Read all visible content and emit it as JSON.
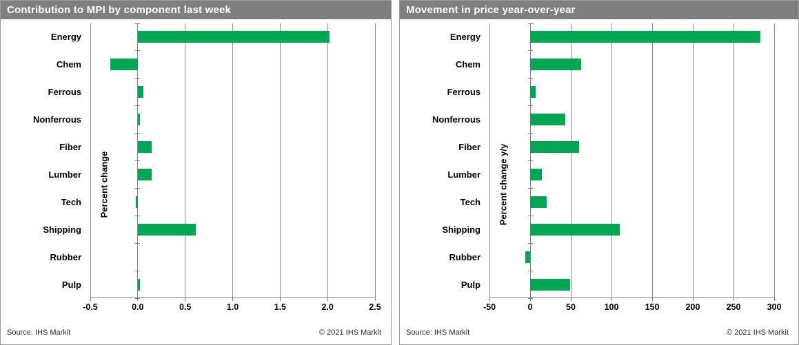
{
  "chart_data": [
    {
      "type": "bar",
      "orientation": "horizontal",
      "title": "Contribution to MPI by component last week",
      "ylabel": "Percent change",
      "xlabel": "",
      "categories": [
        "Energy",
        "Chem",
        "Ferrous",
        "Nonferrous",
        "Fiber",
        "Lumber",
        "Tech",
        "Shipping",
        "Rubber",
        "Pulp"
      ],
      "values": [
        2.02,
        -0.29,
        0.06,
        0.02,
        0.15,
        0.15,
        -0.02,
        0.61,
        0.0,
        0.02
      ],
      "xlim": [
        -0.5,
        2.5
      ],
      "xticks": [
        -0.5,
        0.0,
        0.5,
        1.0,
        1.5,
        2.0,
        2.5
      ],
      "xtick_labels": [
        "-0.5",
        "0.0",
        "0.5",
        "1.0",
        "1.5",
        "2.0",
        "2.5"
      ],
      "grid": true,
      "legend": "none",
      "bar_color": "#00a651",
      "source": "Source: IHS Markit",
      "copyright": "© 2021 IHS Markit"
    },
    {
      "type": "bar",
      "orientation": "horizontal",
      "title": "Movement in price year-over-year",
      "ylabel": "Percent change y/y",
      "xlabel": "",
      "categories": [
        "Energy",
        "Chem",
        "Ferrous",
        "Nonferrous",
        "Fiber",
        "Lumber",
        "Tech",
        "Shipping",
        "Rubber",
        "Pulp"
      ],
      "values": [
        283,
        63,
        7,
        43,
        60,
        14,
        20,
        110,
        -6,
        49
      ],
      "xlim": [
        -50,
        300
      ],
      "xticks": [
        -50,
        0,
        50,
        100,
        150,
        200,
        250,
        300
      ],
      "xtick_labels": [
        "-50",
        "0",
        "50",
        "100",
        "150",
        "200",
        "250",
        "300"
      ],
      "grid": true,
      "legend": "none",
      "bar_color": "#00a651",
      "source": "Source: IHS Markit",
      "copyright": "© 2021 IHS Markit"
    }
  ],
  "colors": {
    "bar_green": "#00a651",
    "title_bar_bg": "#7f7f7f",
    "title_text": "#ffffff",
    "gridline": "#8c8c8c",
    "panel_border": "#9a9a9a"
  }
}
